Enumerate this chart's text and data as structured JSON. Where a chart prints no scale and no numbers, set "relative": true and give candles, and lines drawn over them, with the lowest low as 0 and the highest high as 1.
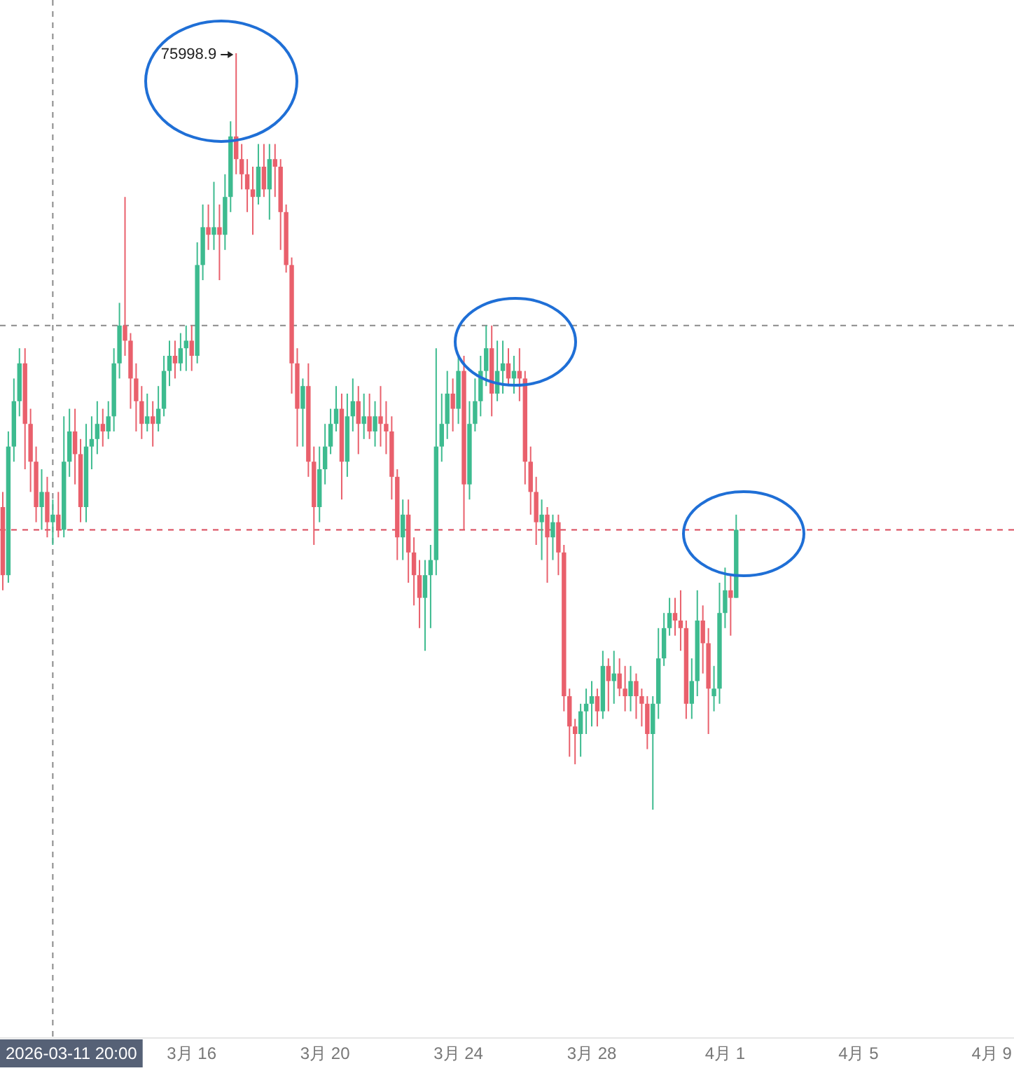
{
  "chart_data": {
    "type": "candlestick",
    "relative": true,
    "tick_labels": "x",
    "xlim": [
      "2026-03-10T06:00",
      "2026-04-09T16:00"
    ],
    "xticks": [
      {
        "value": "2026-03-16",
        "label": "3月 16"
      },
      {
        "value": "2026-03-20",
        "label": "3月 20"
      },
      {
        "value": "2026-03-24",
        "label": "3月 24"
      },
      {
        "value": "2026-03-28",
        "label": "3月 28"
      },
      {
        "value": "2026-04-01",
        "label": "4月 1"
      },
      {
        "value": "2026-04-05",
        "label": "4月 5"
      },
      {
        "value": "2026-04-09",
        "label": "4月 9"
      }
    ],
    "ref_lines": [
      {
        "axis": "x",
        "value": "2026-03-11T20:00",
        "label": "2026-03-11 20:00",
        "color": "#8a8a8a",
        "line_style": "dashed"
      },
      {
        "axis": "y",
        "value": 0.64,
        "color": "#8a8a8a",
        "line_style": "dashed"
      },
      {
        "axis": "y",
        "value": 0.37,
        "color": "#d9485a",
        "line_style": "dashed"
      }
    ],
    "annotations": [
      {
        "text": "75998.9",
        "x": "2026-03-17T08:00",
        "y": 1
      }
    ],
    "x": [
      "2026-03-10T08:00",
      "2026-03-10T12:00",
      "2026-03-10T16:00",
      "2026-03-10T20:00",
      "2026-03-11T00:00",
      "2026-03-11T04:00",
      "2026-03-11T08:00",
      "2026-03-11T12:00",
      "2026-03-11T16:00",
      "2026-03-11T20:00",
      "2026-03-12T00:00",
      "2026-03-12T04:00",
      "2026-03-12T08:00",
      "2026-03-12T12:00",
      "2026-03-12T16:00",
      "2026-03-12T20:00",
      "2026-03-13T00:00",
      "2026-03-13T04:00",
      "2026-03-13T08:00",
      "2026-03-13T12:00",
      "2026-03-13T16:00",
      "2026-03-13T20:00",
      "2026-03-14T00:00",
      "2026-03-14T04:00",
      "2026-03-14T08:00",
      "2026-03-14T12:00",
      "2026-03-14T16:00",
      "2026-03-14T20:00",
      "2026-03-15T00:00",
      "2026-03-15T04:00",
      "2026-03-15T08:00",
      "2026-03-15T12:00",
      "2026-03-15T16:00",
      "2026-03-15T20:00",
      "2026-03-16T00:00",
      "2026-03-16T04:00",
      "2026-03-16T08:00",
      "2026-03-16T12:00",
      "2026-03-16T16:00",
      "2026-03-16T20:00",
      "2026-03-17T00:00",
      "2026-03-17T04:00",
      "2026-03-17T08:00",
      "2026-03-17T12:00",
      "2026-03-17T16:00",
      "2026-03-17T20:00",
      "2026-03-18T00:00",
      "2026-03-18T04:00",
      "2026-03-18T08:00",
      "2026-03-18T12:00",
      "2026-03-18T16:00",
      "2026-03-18T20:00",
      "2026-03-19T00:00",
      "2026-03-19T04:00",
      "2026-03-19T08:00",
      "2026-03-19T12:00",
      "2026-03-19T16:00",
      "2026-03-19T20:00",
      "2026-03-20T00:00",
      "2026-03-20T04:00",
      "2026-03-20T08:00",
      "2026-03-20T12:00",
      "2026-03-20T16:00",
      "2026-03-20T20:00",
      "2026-03-21T00:00",
      "2026-03-21T04:00",
      "2026-03-21T08:00",
      "2026-03-21T12:00",
      "2026-03-21T16:00",
      "2026-03-21T20:00",
      "2026-03-22T00:00",
      "2026-03-22T04:00",
      "2026-03-22T08:00",
      "2026-03-22T12:00",
      "2026-03-22T16:00",
      "2026-03-22T20:00",
      "2026-03-23T00:00",
      "2026-03-23T04:00",
      "2026-03-23T08:00",
      "2026-03-23T12:00",
      "2026-03-23T16:00",
      "2026-03-23T20:00",
      "2026-03-24T00:00",
      "2026-03-24T04:00",
      "2026-03-24T08:00",
      "2026-03-24T12:00",
      "2026-03-24T16:00",
      "2026-03-24T20:00",
      "2026-03-25T00:00",
      "2026-03-25T04:00",
      "2026-03-25T08:00",
      "2026-03-25T12:00",
      "2026-03-25T16:00",
      "2026-03-25T20:00",
      "2026-03-26T00:00",
      "2026-03-26T04:00",
      "2026-03-26T08:00",
      "2026-03-26T12:00",
      "2026-03-26T16:00",
      "2026-03-26T20:00",
      "2026-03-27T00:00",
      "2026-03-27T04:00",
      "2026-03-27T08:00",
      "2026-03-27T12:00",
      "2026-03-27T16:00",
      "2026-03-27T20:00",
      "2026-03-28T00:00",
      "2026-03-28T04:00",
      "2026-03-28T08:00",
      "2026-03-28T12:00",
      "2026-03-28T16:00",
      "2026-03-28T20:00",
      "2026-03-29T00:00",
      "2026-03-29T04:00",
      "2026-03-29T08:00",
      "2026-03-29T12:00",
      "2026-03-29T16:00",
      "2026-03-29T20:00",
      "2026-03-30T00:00",
      "2026-03-30T04:00",
      "2026-03-30T08:00",
      "2026-03-30T12:00",
      "2026-03-30T16:00",
      "2026-03-30T20:00",
      "2026-03-31T00:00",
      "2026-03-31T04:00",
      "2026-03-31T08:00",
      "2026-03-31T12:00",
      "2026-03-31T16:00",
      "2026-03-31T20:00",
      "2026-04-01T00:00",
      "2026-04-01T04:00",
      "2026-04-01T08:00"
    ],
    "ohlc": [
      [
        0.4,
        0.42,
        0.29,
        0.31
      ],
      [
        0.31,
        0.5,
        0.3,
        0.48
      ],
      [
        0.48,
        0.57,
        0.46,
        0.54
      ],
      [
        0.54,
        0.61,
        0.52,
        0.59
      ],
      [
        0.59,
        0.61,
        0.45,
        0.51
      ],
      [
        0.51,
        0.53,
        0.42,
        0.46
      ],
      [
        0.46,
        0.48,
        0.38,
        0.4
      ],
      [
        0.4,
        0.45,
        0.37,
        0.42
      ],
      [
        0.42,
        0.44,
        0.36,
        0.38
      ],
      [
        0.38,
        0.41,
        0.35,
        0.39
      ],
      [
        0.39,
        0.42,
        0.36,
        0.37
      ],
      [
        0.37,
        0.52,
        0.36,
        0.46
      ],
      [
        0.46,
        0.53,
        0.44,
        0.5
      ],
      [
        0.5,
        0.53,
        0.43,
        0.47
      ],
      [
        0.47,
        0.49,
        0.38,
        0.4
      ],
      [
        0.4,
        0.51,
        0.38,
        0.48
      ],
      [
        0.48,
        0.52,
        0.45,
        0.49
      ],
      [
        0.49,
        0.54,
        0.47,
        0.51
      ],
      [
        0.51,
        0.53,
        0.48,
        0.5
      ],
      [
        0.5,
        0.54,
        0.49,
        0.52
      ],
      [
        0.52,
        0.61,
        0.5,
        0.59
      ],
      [
        0.59,
        0.67,
        0.57,
        0.64
      ],
      [
        0.64,
        0.81,
        0.6,
        0.62
      ],
      [
        0.62,
        0.63,
        0.53,
        0.57
      ],
      [
        0.57,
        0.59,
        0.5,
        0.54
      ],
      [
        0.54,
        0.56,
        0.49,
        0.51
      ],
      [
        0.51,
        0.55,
        0.5,
        0.52
      ],
      [
        0.52,
        0.54,
        0.48,
        0.51
      ],
      [
        0.51,
        0.56,
        0.5,
        0.53
      ],
      [
        0.53,
        0.6,
        0.52,
        0.58
      ],
      [
        0.58,
        0.62,
        0.56,
        0.6
      ],
      [
        0.6,
        0.62,
        0.57,
        0.59
      ],
      [
        0.59,
        0.63,
        0.58,
        0.61
      ],
      [
        0.61,
        0.64,
        0.58,
        0.62
      ],
      [
        0.62,
        0.64,
        0.58,
        0.6
      ],
      [
        0.6,
        0.75,
        0.59,
        0.72
      ],
      [
        0.72,
        0.8,
        0.7,
        0.77
      ],
      [
        0.77,
        0.8,
        0.74,
        0.76
      ],
      [
        0.76,
        0.83,
        0.74,
        0.77
      ],
      [
        0.77,
        0.8,
        0.7,
        0.76
      ],
      [
        0.76,
        0.84,
        0.74,
        0.81
      ],
      [
        0.81,
        0.91,
        0.79,
        0.89
      ],
      [
        0.89,
        1,
        0.84,
        0.86
      ],
      [
        0.86,
        0.88,
        0.82,
        0.84
      ],
      [
        0.84,
        0.86,
        0.79,
        0.82
      ],
      [
        0.82,
        0.85,
        0.76,
        0.81
      ],
      [
        0.81,
        0.88,
        0.8,
        0.85
      ],
      [
        0.85,
        0.88,
        0.81,
        0.82
      ],
      [
        0.82,
        0.88,
        0.78,
        0.86
      ],
      [
        0.86,
        0.88,
        0.81,
        0.85
      ],
      [
        0.85,
        0.86,
        0.74,
        0.79
      ],
      [
        0.79,
        0.8,
        0.71,
        0.72
      ],
      [
        0.72,
        0.73,
        0.55,
        0.59
      ],
      [
        0.59,
        0.61,
        0.48,
        0.53
      ],
      [
        0.53,
        0.57,
        0.48,
        0.56
      ],
      [
        0.56,
        0.59,
        0.44,
        0.46
      ],
      [
        0.46,
        0.48,
        0.35,
        0.4
      ],
      [
        0.4,
        0.48,
        0.38,
        0.45
      ],
      [
        0.45,
        0.51,
        0.43,
        0.48
      ],
      [
        0.48,
        0.53,
        0.47,
        0.51
      ],
      [
        0.51,
        0.56,
        0.5,
        0.53
      ],
      [
        0.53,
        0.55,
        0.41,
        0.46
      ],
      [
        0.46,
        0.55,
        0.44,
        0.52
      ],
      [
        0.52,
        0.57,
        0.5,
        0.54
      ],
      [
        0.54,
        0.56,
        0.47,
        0.51
      ],
      [
        0.51,
        0.55,
        0.49,
        0.52
      ],
      [
        0.52,
        0.55,
        0.49,
        0.5
      ],
      [
        0.5,
        0.54,
        0.48,
        0.52
      ],
      [
        0.52,
        0.56,
        0.48,
        0.51
      ],
      [
        0.51,
        0.54,
        0.47,
        0.5
      ],
      [
        0.5,
        0.52,
        0.41,
        0.44
      ],
      [
        0.44,
        0.45,
        0.33,
        0.36
      ],
      [
        0.36,
        0.41,
        0.33,
        0.39
      ],
      [
        0.39,
        0.41,
        0.3,
        0.34
      ],
      [
        0.34,
        0.36,
        0.27,
        0.31
      ],
      [
        0.31,
        0.33,
        0.24,
        0.28
      ],
      [
        0.28,
        0.33,
        0.21,
        0.31
      ],
      [
        0.31,
        0.35,
        0.24,
        0.33
      ],
      [
        0.33,
        0.61,
        0.31,
        0.48
      ],
      [
        0.48,
        0.55,
        0.46,
        0.51
      ],
      [
        0.51,
        0.58,
        0.49,
        0.55
      ],
      [
        0.55,
        0.57,
        0.5,
        0.53
      ],
      [
        0.53,
        0.6,
        0.51,
        0.58
      ],
      [
        0.58,
        0.6,
        0.37,
        0.43
      ],
      [
        0.43,
        0.54,
        0.41,
        0.51
      ],
      [
        0.51,
        0.57,
        0.5,
        0.54
      ],
      [
        0.54,
        0.6,
        0.52,
        0.58
      ],
      [
        0.58,
        0.64,
        0.56,
        0.61
      ],
      [
        0.61,
        0.64,
        0.52,
        0.55
      ],
      [
        0.55,
        0.62,
        0.54,
        0.58
      ],
      [
        0.58,
        0.62,
        0.55,
        0.59
      ],
      [
        0.59,
        0.61,
        0.56,
        0.57
      ],
      [
        0.57,
        0.6,
        0.55,
        0.58
      ],
      [
        0.58,
        0.61,
        0.54,
        0.57
      ],
      [
        0.57,
        0.58,
        0.43,
        0.46
      ],
      [
        0.46,
        0.48,
        0.39,
        0.42
      ],
      [
        0.42,
        0.44,
        0.35,
        0.38
      ],
      [
        0.38,
        0.41,
        0.33,
        0.39
      ],
      [
        0.39,
        0.4,
        0.3,
        0.36
      ],
      [
        0.36,
        0.39,
        0.33,
        0.38
      ],
      [
        0.38,
        0.39,
        0.31,
        0.34
      ],
      [
        0.34,
        0.35,
        0.13,
        0.15
      ],
      [
        0.15,
        0.16,
        0.07,
        0.11
      ],
      [
        0.11,
        0.12,
        0.06,
        0.1
      ],
      [
        0.1,
        0.14,
        0.07,
        0.13
      ],
      [
        0.13,
        0.16,
        0.1,
        0.14
      ],
      [
        0.14,
        0.17,
        0.11,
        0.15
      ],
      [
        0.15,
        0.16,
        0.11,
        0.13
      ],
      [
        0.13,
        0.21,
        0.12,
        0.19
      ],
      [
        0.19,
        0.2,
        0.13,
        0.17
      ],
      [
        0.17,
        0.21,
        0.14,
        0.18
      ],
      [
        0.18,
        0.2,
        0.15,
        0.16
      ],
      [
        0.16,
        0.19,
        0.13,
        0.15
      ],
      [
        0.15,
        0.19,
        0.13,
        0.17
      ],
      [
        0.17,
        0.18,
        0.12,
        0.15
      ],
      [
        0.15,
        0.16,
        0.11,
        0.14
      ],
      [
        0.14,
        0.15,
        0.08,
        0.1
      ],
      [
        0.1,
        0.15,
        0,
        0.14
      ],
      [
        0.14,
        0.24,
        0.12,
        0.2
      ],
      [
        0.2,
        0.26,
        0.19,
        0.24
      ],
      [
        0.24,
        0.28,
        0.23,
        0.26
      ],
      [
        0.26,
        0.28,
        0.23,
        0.25
      ],
      [
        0.25,
        0.29,
        0.21,
        0.24
      ],
      [
        0.24,
        0.25,
        0.12,
        0.14
      ],
      [
        0.14,
        0.2,
        0.12,
        0.17
      ],
      [
        0.17,
        0.29,
        0.15,
        0.25
      ],
      [
        0.25,
        0.27,
        0.18,
        0.22
      ],
      [
        0.22,
        0.24,
        0.1,
        0.16
      ],
      [
        0.15,
        0.19,
        0.13,
        0.16
      ],
      [
        0.16,
        0.3,
        0.14,
        0.26
      ],
      [
        0.26,
        0.32,
        0.24,
        0.29
      ],
      [
        0.29,
        0.31,
        0.23,
        0.28
      ],
      [
        0.28,
        0.39,
        0.28,
        0.37
      ]
    ]
  }
}
